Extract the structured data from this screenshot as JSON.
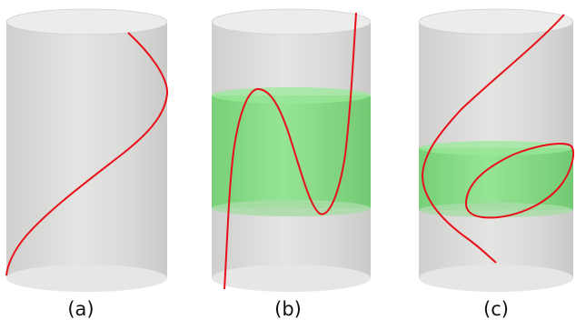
{
  "panels": [
    {
      "id": "a",
      "label": "(a)",
      "band": false,
      "curve": "single-twist"
    },
    {
      "id": "b",
      "label": "(b)",
      "band": true,
      "curve": "oscillating-through-band"
    },
    {
      "id": "c",
      "label": "(c)",
      "band": true,
      "curve": "arc-plus-closed-loop-in-band"
    }
  ],
  "colors": {
    "cylinder_body": "#d9d9d7",
    "cylinder_cap": "#ececea",
    "band": "#7fdc7f",
    "curve": "#e8101a",
    "background": "#ffffff"
  }
}
